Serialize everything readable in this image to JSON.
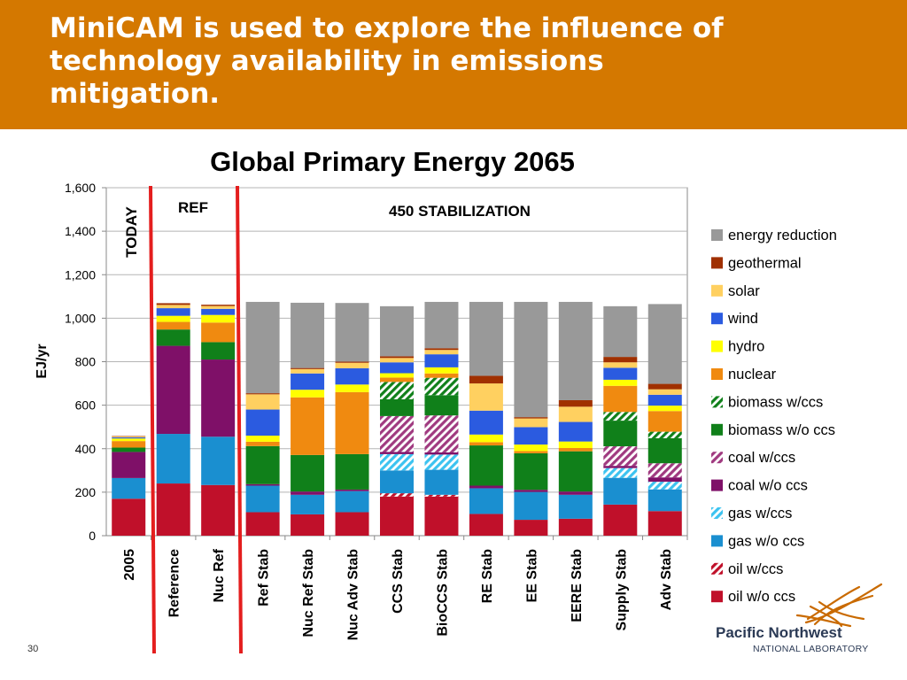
{
  "slide": {
    "title": "MiniCAM is used to explore the influence of\ntechnology availability in emissions\nmitigation.",
    "page_number": "30"
  },
  "logo": {
    "line1": "Pacific Northwest",
    "line2": "NATIONAL LABORATORY"
  },
  "chart_data": {
    "type": "bar",
    "stacked": true,
    "title": "Global Primary Energy 2065",
    "ylabel": "EJ/yr",
    "ylim": [
      0,
      1600
    ],
    "yticks": [
      "0",
      "200",
      "400",
      "600",
      "800",
      "1,000",
      "1,200",
      "1,400",
      "1,600"
    ],
    "grid": true,
    "legend_position": "right",
    "annotations": [
      "TODAY",
      "REF",
      "450 STABILIZATION"
    ],
    "categories": [
      "2005",
      "Reference",
      "Nuc Ref",
      "Ref Stab",
      "Nuc Ref Stab",
      "Nuc Adv Stab",
      "CCS Stab",
      "BioCCS Stab",
      "RE Stab",
      "EE Stab",
      "EERE Stab",
      "Supply Stab",
      "Adv Stab"
    ],
    "series": [
      {
        "name": "oil w/o ccs",
        "color": "#c0102a",
        "pattern": "solid",
        "values": [
          170,
          240,
          233,
          108,
          98,
          108,
          180,
          180,
          100,
          73,
          78,
          143,
          113
        ]
      },
      {
        "name": "oil w/ccs",
        "color": "#c0102a",
        "pattern": "hatch",
        "values": [
          0,
          0,
          0,
          0,
          0,
          0,
          15,
          8,
          0,
          0,
          0,
          0,
          0
        ]
      },
      {
        "name": "gas w/o ccs",
        "color": "#1a8fd0",
        "pattern": "solid",
        "values": [
          95,
          228,
          222,
          122,
          90,
          97,
          105,
          115,
          118,
          128,
          110,
          123,
          100
        ]
      },
      {
        "name": "gas w/ccs",
        "color": "#3cc3f0",
        "pattern": "hatch",
        "values": [
          0,
          0,
          0,
          0,
          0,
          0,
          75,
          70,
          0,
          0,
          0,
          45,
          35
        ]
      },
      {
        "name": "coal w/o ccs",
        "color": "#7f1068",
        "pattern": "solid",
        "values": [
          120,
          405,
          355,
          7,
          15,
          7,
          10,
          10,
          12,
          10,
          15,
          10,
          20
        ]
      },
      {
        "name": "coal w/ccs",
        "color": "#a03a80",
        "pattern": "hatch",
        "values": [
          0,
          0,
          0,
          0,
          0,
          0,
          165,
          170,
          0,
          0,
          0,
          90,
          65
        ]
      },
      {
        "name": "biomass w/o ccs",
        "color": "#10801a",
        "pattern": "solid",
        "values": [
          20,
          75,
          80,
          175,
          168,
          163,
          77,
          93,
          185,
          168,
          185,
          118,
          115
        ]
      },
      {
        "name": "biomass w/ccs",
        "color": "#10801a",
        "pattern": "hatch",
        "values": [
          0,
          0,
          0,
          0,
          0,
          0,
          80,
          80,
          0,
          0,
          0,
          40,
          30
        ]
      },
      {
        "name": "nuclear",
        "color": "#f08a10",
        "pattern": "solid",
        "values": [
          30,
          35,
          90,
          20,
          265,
          285,
          20,
          20,
          15,
          10,
          15,
          120,
          95
        ]
      },
      {
        "name": "hydro",
        "color": "#ffff00",
        "pattern": "solid",
        "values": [
          12,
          28,
          35,
          28,
          35,
          35,
          20,
          28,
          35,
          30,
          30,
          28,
          25
        ]
      },
      {
        "name": "wind",
        "color": "#2b5be0",
        "pattern": "solid",
        "values": [
          5,
          35,
          28,
          120,
          75,
          75,
          50,
          60,
          110,
          80,
          90,
          55,
          50
        ]
      },
      {
        "name": "solar",
        "color": "#ffd060",
        "pattern": "solid",
        "values": [
          4,
          15,
          13,
          70,
          20,
          25,
          20,
          20,
          125,
          40,
          70,
          25,
          25
        ]
      },
      {
        "name": "geothermal",
        "color": "#a03000",
        "pattern": "solid",
        "values": [
          2,
          8,
          6,
          5,
          5,
          5,
          8,
          8,
          35,
          6,
          30,
          25,
          25
        ]
      },
      {
        "name": "energy reduction",
        "color": "#999999",
        "pattern": "solid",
        "values": [
          0,
          0,
          0,
          420,
          300,
          270,
          230,
          213,
          340,
          530,
          452,
          233,
          367
        ]
      }
    ]
  }
}
